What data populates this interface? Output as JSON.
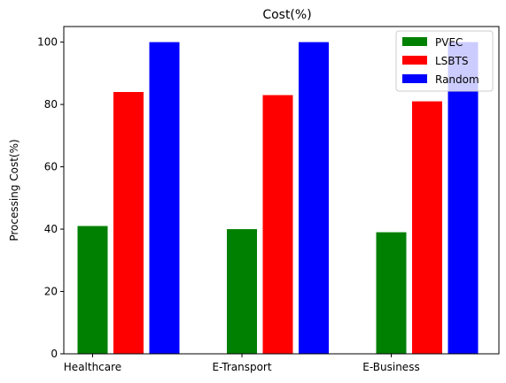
{
  "chart_data": {
    "type": "bar",
    "title": "Cost(%)",
    "xlabel": "",
    "ylabel": "Processing Cost(%)",
    "categories": [
      "Healthcare",
      "E-Transport",
      "E-Business"
    ],
    "series": [
      {
        "name": "PVEC",
        "color": "#008000",
        "values": [
          41,
          40,
          39
        ]
      },
      {
        "name": "LSBTS",
        "color": "#ff0000",
        "values": [
          84,
          83,
          81
        ]
      },
      {
        "name": "Random",
        "color": "#0000ff",
        "values": [
          100,
          100,
          100
        ]
      }
    ],
    "ylim": [
      0,
      105
    ],
    "yticks": [
      0,
      20,
      40,
      60,
      80,
      100
    ],
    "grid": false,
    "legend_position": "top-right"
  }
}
